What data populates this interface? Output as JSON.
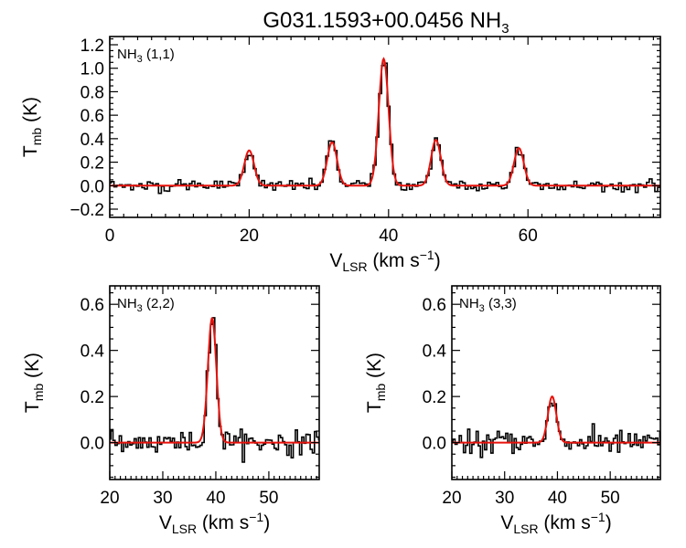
{
  "figure": {
    "title": "G031.1593+00.0456 NH",
    "title_sub": "3"
  },
  "chart_data": [
    {
      "type": "line",
      "panel_label": "NH",
      "panel_label_sub": "3",
      "panel_label_tail": " (1,1)",
      "xlabel": "V",
      "xlabel_sub": "LSR",
      "xlabel_tail": " (km s",
      "xlabel_sup": "−1",
      "xlabel_close": ")",
      "ylabel": "T",
      "ylabel_sub": "mb",
      "ylabel_tail": " (K)",
      "xlim": [
        0,
        79
      ],
      "ylim": [
        -0.27,
        1.27
      ],
      "xticks": [
        0,
        20,
        40,
        60
      ],
      "yticks": [
        -0.2,
        0.0,
        0.2,
        0.4,
        0.6,
        0.8,
        1.0,
        1.2
      ],
      "ytick_labels": [
        "−0.2",
        "0.0",
        "0.2",
        "0.4",
        "0.6",
        "0.8",
        "1.0",
        "1.2"
      ],
      "observed_color": "#000000",
      "fit_color": "#e8120c",
      "components": [
        {
          "center": 20.0,
          "amplitude": 0.3,
          "sigma": 0.7
        },
        {
          "center": 31.9,
          "amplitude": 0.37,
          "sigma": 0.7
        },
        {
          "center": 39.3,
          "amplitude": 1.08,
          "sigma": 0.7
        },
        {
          "center": 46.8,
          "amplitude": 0.39,
          "sigma": 0.7
        },
        {
          "center": 58.7,
          "amplitude": 0.32,
          "sigma": 0.7
        }
      ]
    },
    {
      "type": "line",
      "panel_label": "NH",
      "panel_label_sub": "3",
      "panel_label_tail": " (2,2)",
      "xlabel": "V",
      "xlabel_sub": "LSR",
      "xlabel_tail": " (km s",
      "xlabel_sup": "−1",
      "xlabel_close": ")",
      "ylabel": "T",
      "ylabel_sub": "mb",
      "ylabel_tail": " (K)",
      "xlim": [
        20,
        59.5
      ],
      "ylim": [
        -0.16,
        0.68
      ],
      "xticks": [
        20,
        30,
        40,
        50
      ],
      "yticks": [
        0.0,
        0.2,
        0.4,
        0.6
      ],
      "ytick_labels": [
        "0.0",
        "0.2",
        "0.4",
        "0.6"
      ],
      "observed_color": "#000000",
      "fit_color": "#e8120c",
      "components": [
        {
          "center": 39.3,
          "amplitude": 0.54,
          "sigma": 0.8
        }
      ]
    },
    {
      "type": "line",
      "panel_label": "NH",
      "panel_label_sub": "3",
      "panel_label_tail": " (3,3)",
      "xlabel": "V",
      "xlabel_sub": "LSR",
      "xlabel_tail": " (km s",
      "xlabel_sup": "−1",
      "xlabel_close": ")",
      "ylabel": "T",
      "ylabel_sub": "mb",
      "ylabel_tail": " (K)",
      "xlim": [
        20,
        59.5
      ],
      "ylim": [
        -0.16,
        0.68
      ],
      "xticks": [
        20,
        30,
        40,
        50
      ],
      "yticks": [
        0.0,
        0.2,
        0.4,
        0.6
      ],
      "ytick_labels": [
        "0.0",
        "0.2",
        "0.4",
        "0.6"
      ],
      "observed_color": "#000000",
      "fit_color": "#e8120c",
      "components": [
        {
          "center": 39.0,
          "amplitude": 0.2,
          "sigma": 0.8
        }
      ]
    }
  ]
}
